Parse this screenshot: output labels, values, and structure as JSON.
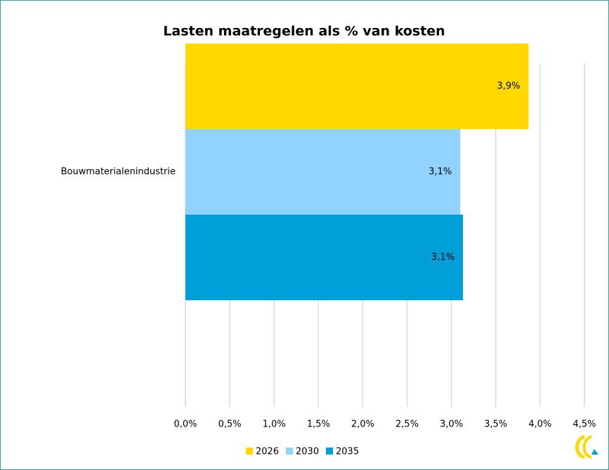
{
  "chart_data": {
    "type": "bar",
    "orientation": "horizontal",
    "title": "Lasten maatregelen als % van kosten",
    "categories": [
      "Bouwmaterialenindustrie"
    ],
    "series": [
      {
        "name": "2026",
        "color": "#ffd800",
        "values": [
          3.87
        ],
        "value_labels": [
          "3,9%"
        ]
      },
      {
        "name": "2030",
        "color": "#8fd3fe",
        "values": [
          3.1
        ],
        "value_labels": [
          "3,1%"
        ]
      },
      {
        "name": "2035",
        "color": "#009fd9",
        "values": [
          3.13
        ],
        "value_labels": [
          "3,1%"
        ]
      }
    ],
    "xlim": [
      0,
      4.5
    ],
    "xticks": [
      {
        "value": 0,
        "label": "0,0%"
      },
      {
        "value": 0.5,
        "label": "0,5%"
      },
      {
        "value": 1,
        "label": "1,0%"
      },
      {
        "value": 1.5,
        "label": "1,5%"
      },
      {
        "value": 2,
        "label": "2,0%"
      },
      {
        "value": 2.5,
        "label": "2,5%"
      },
      {
        "value": 3,
        "label": "3,0%"
      },
      {
        "value": 3.5,
        "label": "3,5%"
      },
      {
        "value": 4,
        "label": "4,0%"
      },
      {
        "value": 4.5,
        "label": "4,5%"
      }
    ],
    "grid": true,
    "legend": "bottom"
  }
}
